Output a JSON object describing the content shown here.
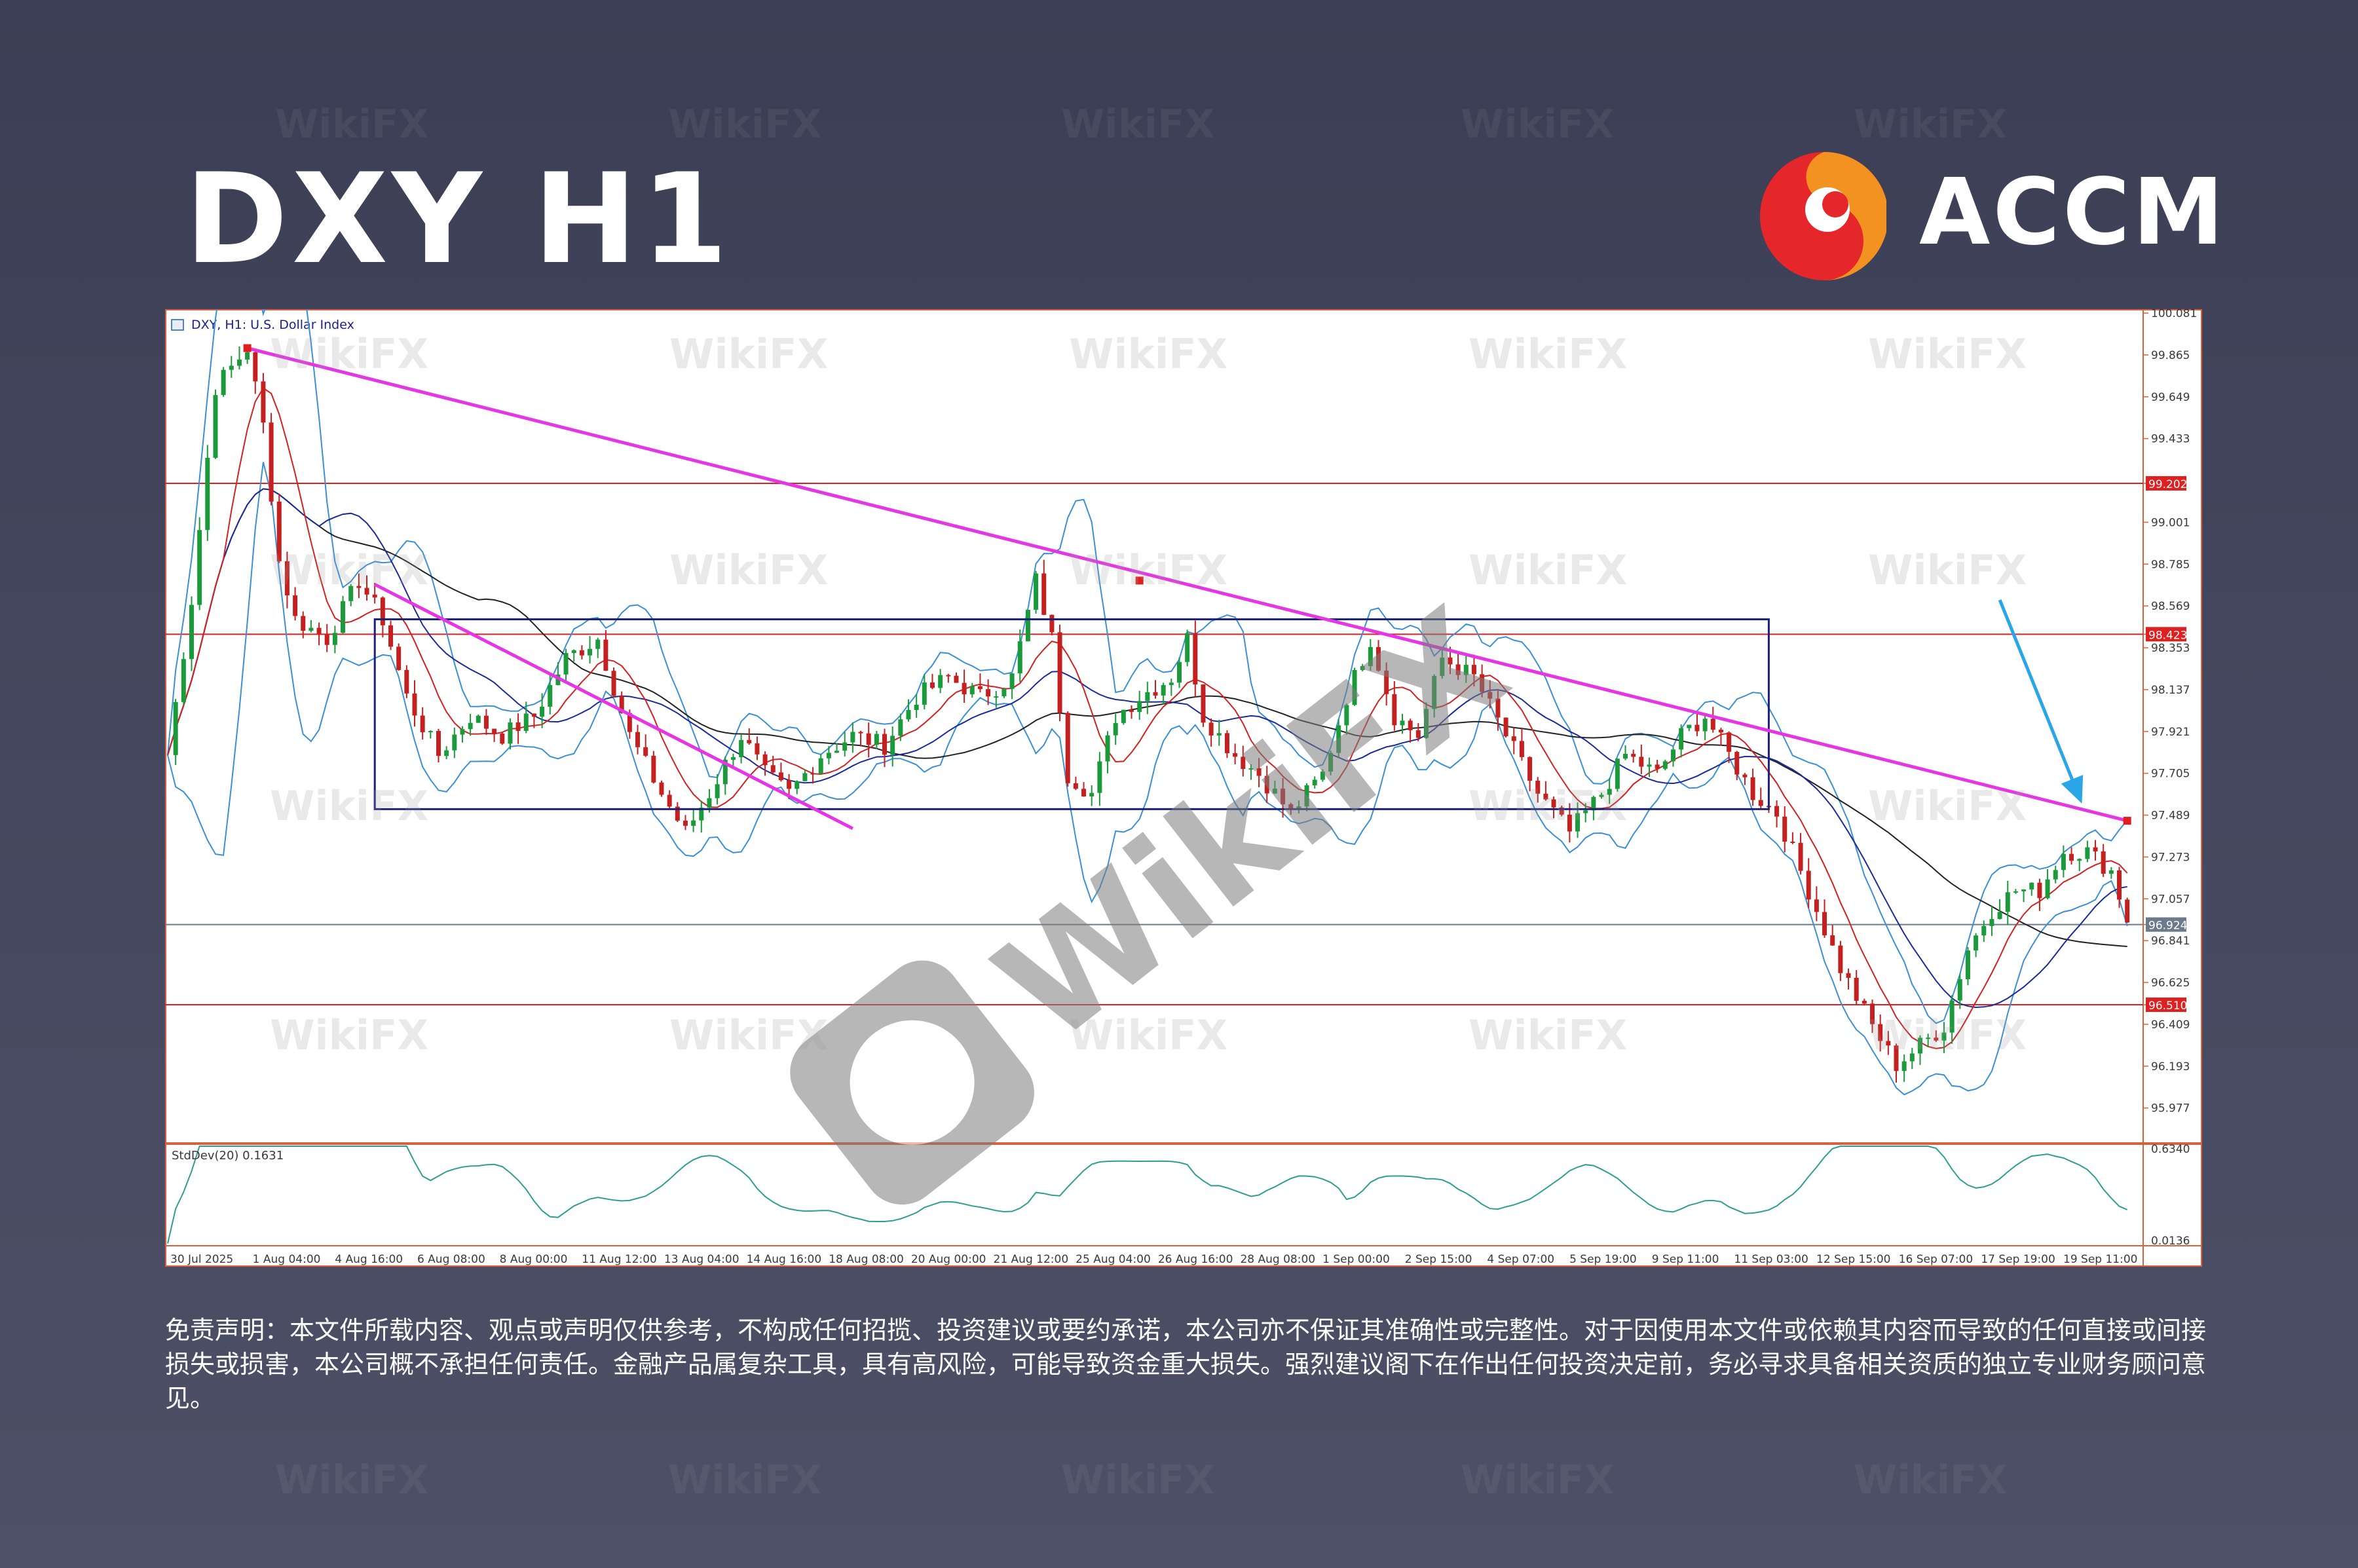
{
  "title": "DXY H1",
  "brand": {
    "name": "ACCM",
    "colors": {
      "red": "#e5262a",
      "orange": "#f39221"
    }
  },
  "watermark": {
    "text": "WikiFX",
    "big_text": "WikiFX",
    "color": "#9b9b9b"
  },
  "chart_header": "DXY, H1: U.S. Dollar Index",
  "indicator_label": "StdDev(20) 0.1631",
  "disclaimer": "免责声明：本文件所载内容、观点或声明仅供参考，不构成任何招揽、投资建议或要约承诺，本公司亦不保证其准确性或完整性。对于因使用本文件或依赖其内容而导致的任何直接或间接损失或损害，本公司概不承担任何责任。金融产品属复杂工具，具有高风险，可能导致资金重大损失。强烈建议阁下在作出任何投资决定前，务必寻求具备相关资质的独立专业财务顾问意见。",
  "chart_data": {
    "type": "candlestick",
    "symbol": "DXY",
    "timeframe": "H1",
    "ylim": [
      95.8,
      100.081
    ],
    "y_ticks": [
      "100.081",
      "99.865",
      "99.649",
      "99.433",
      "99.202",
      "99.001",
      "98.785",
      "98.569",
      "98.423",
      "98.353",
      "98.137",
      "97.921",
      "97.705",
      "97.489",
      "97.273",
      "97.057",
      "96.924",
      "96.841",
      "96.625",
      "96.510",
      "96.409",
      "96.193",
      "95.977"
    ],
    "y_tick_values": [
      100.081,
      99.865,
      99.649,
      99.433,
      99.202,
      99.001,
      98.785,
      98.569,
      98.423,
      98.353,
      98.137,
      97.921,
      97.705,
      97.489,
      97.273,
      97.057,
      96.924,
      96.841,
      96.625,
      96.51,
      96.409,
      96.193,
      95.977
    ],
    "highlighted_levels": [
      {
        "value": 99.202,
        "label": "99.202",
        "color": "#e02020"
      },
      {
        "value": 98.423,
        "label": "98.423",
        "color": "#e02020"
      },
      {
        "value": 96.924,
        "label": "96.924",
        "color": "#6b7b8c"
      },
      {
        "value": 96.51,
        "label": "96.510",
        "color": "#e02020"
      }
    ],
    "x_labels": [
      "30 Jul 2025",
      "1 Aug 04:00",
      "4 Aug 16:00",
      "6 Aug 08:00",
      "8 Aug 00:00",
      "11 Aug 12:00",
      "13 Aug 04:00",
      "14 Aug 16:00",
      "18 Aug 08:00",
      "20 Aug 00:00",
      "21 Aug 12:00",
      "25 Aug 04:00",
      "26 Aug 16:00",
      "28 Aug 08:00",
      "1 Sep 00:00",
      "2 Sep 15:00",
      "4 Sep 07:00",
      "5 Sep 19:00",
      "9 Sep 11:00",
      "11 Sep 03:00",
      "12 Sep 15:00",
      "16 Sep 07:00",
      "17 Sep 19:00",
      "19 Sep 11:00"
    ],
    "price_path": [
      [
        0,
        97.8
      ],
      [
        3,
        98.6
      ],
      [
        6,
        99.7
      ],
      [
        10,
        99.9
      ],
      [
        12,
        99.5
      ],
      [
        14,
        98.8
      ],
      [
        16,
        98.5
      ],
      [
        20,
        98.4
      ],
      [
        24,
        98.7
      ],
      [
        27,
        98.5
      ],
      [
        30,
        98.1
      ],
      [
        34,
        97.8
      ],
      [
        38,
        98.0
      ],
      [
        42,
        97.9
      ],
      [
        46,
        98.0
      ],
      [
        50,
        98.3
      ],
      [
        54,
        98.4
      ],
      [
        58,
        97.9
      ],
      [
        62,
        97.6
      ],
      [
        65,
        97.4
      ],
      [
        68,
        97.6
      ],
      [
        72,
        97.9
      ],
      [
        75,
        97.7
      ],
      [
        78,
        97.6
      ],
      [
        82,
        97.8
      ],
      [
        86,
        97.9
      ],
      [
        90,
        97.85
      ],
      [
        94,
        98.1
      ],
      [
        98,
        98.2
      ],
      [
        102,
        98.1
      ],
      [
        106,
        98.2
      ],
      [
        109,
        98.7
      ],
      [
        111,
        98.4
      ],
      [
        113,
        97.7
      ],
      [
        116,
        97.6
      ],
      [
        119,
        98.0
      ],
      [
        122,
        98.1
      ],
      [
        126,
        98.2
      ],
      [
        128,
        98.4
      ],
      [
        130,
        98.0
      ],
      [
        134,
        97.8
      ],
      [
        137,
        97.7
      ],
      [
        141,
        97.5
      ],
      [
        145,
        97.7
      ],
      [
        148,
        98.1
      ],
      [
        151,
        98.4
      ],
      [
        154,
        98.0
      ],
      [
        157,
        97.9
      ],
      [
        160,
        98.3
      ],
      [
        164,
        98.2
      ],
      [
        168,
        97.9
      ],
      [
        172,
        97.6
      ],
      [
        176,
        97.4
      ],
      [
        180,
        97.6
      ],
      [
        183,
        97.8
      ],
      [
        187,
        97.7
      ],
      [
        190,
        97.9
      ],
      [
        193,
        98.0
      ],
      [
        196,
        97.8
      ],
      [
        199,
        97.6
      ],
      [
        202,
        97.5
      ],
      [
        206,
        97.1
      ],
      [
        210,
        96.7
      ],
      [
        214,
        96.4
      ],
      [
        217,
        96.2
      ],
      [
        220,
        96.3
      ],
      [
        223,
        96.4
      ],
      [
        226,
        96.8
      ],
      [
        229,
        97.0
      ],
      [
        232,
        97.1
      ],
      [
        235,
        97.1
      ],
      [
        238,
        97.3
      ],
      [
        241,
        97.3
      ],
      [
        244,
        97.2
      ],
      [
        246,
        96.95
      ]
    ],
    "trendlines": [
      {
        "name": "",
        "from": [
          10,
          99.9
        ],
        "to": [
          246,
          97.46
        ],
        "color": "#e535e5"
      },
      {
        "name": "",
        "from": [
          26,
          98.68
        ],
        "to": [
          86,
          97.42
        ],
        "color": "#e535e5"
      }
    ],
    "range_box": {
      "x_from": 26,
      "x_to": 201,
      "y_from": 97.52,
      "y_to": 98.5,
      "color": "#1c2377"
    },
    "markers": [
      {
        "x": 10,
        "y": 99.9,
        "color": "#e02020"
      },
      {
        "x": 122,
        "y": 98.7,
        "color": "#e02020"
      },
      {
        "x": 246,
        "y": 97.46,
        "color": "#e02020"
      }
    ],
    "annotation_arrow": {
      "color": "#2aa6e8",
      "from": [
        230,
        98.6
      ],
      "to": [
        240,
        97.58
      ]
    },
    "sub_chart": {
      "name": "StdDev(20)",
      "value": 0.1631,
      "ylim": [
        0.0136,
        0.634
      ],
      "y_ticks": [
        "0.6340",
        "0.0136"
      ],
      "color": "#2e9e8e"
    }
  }
}
